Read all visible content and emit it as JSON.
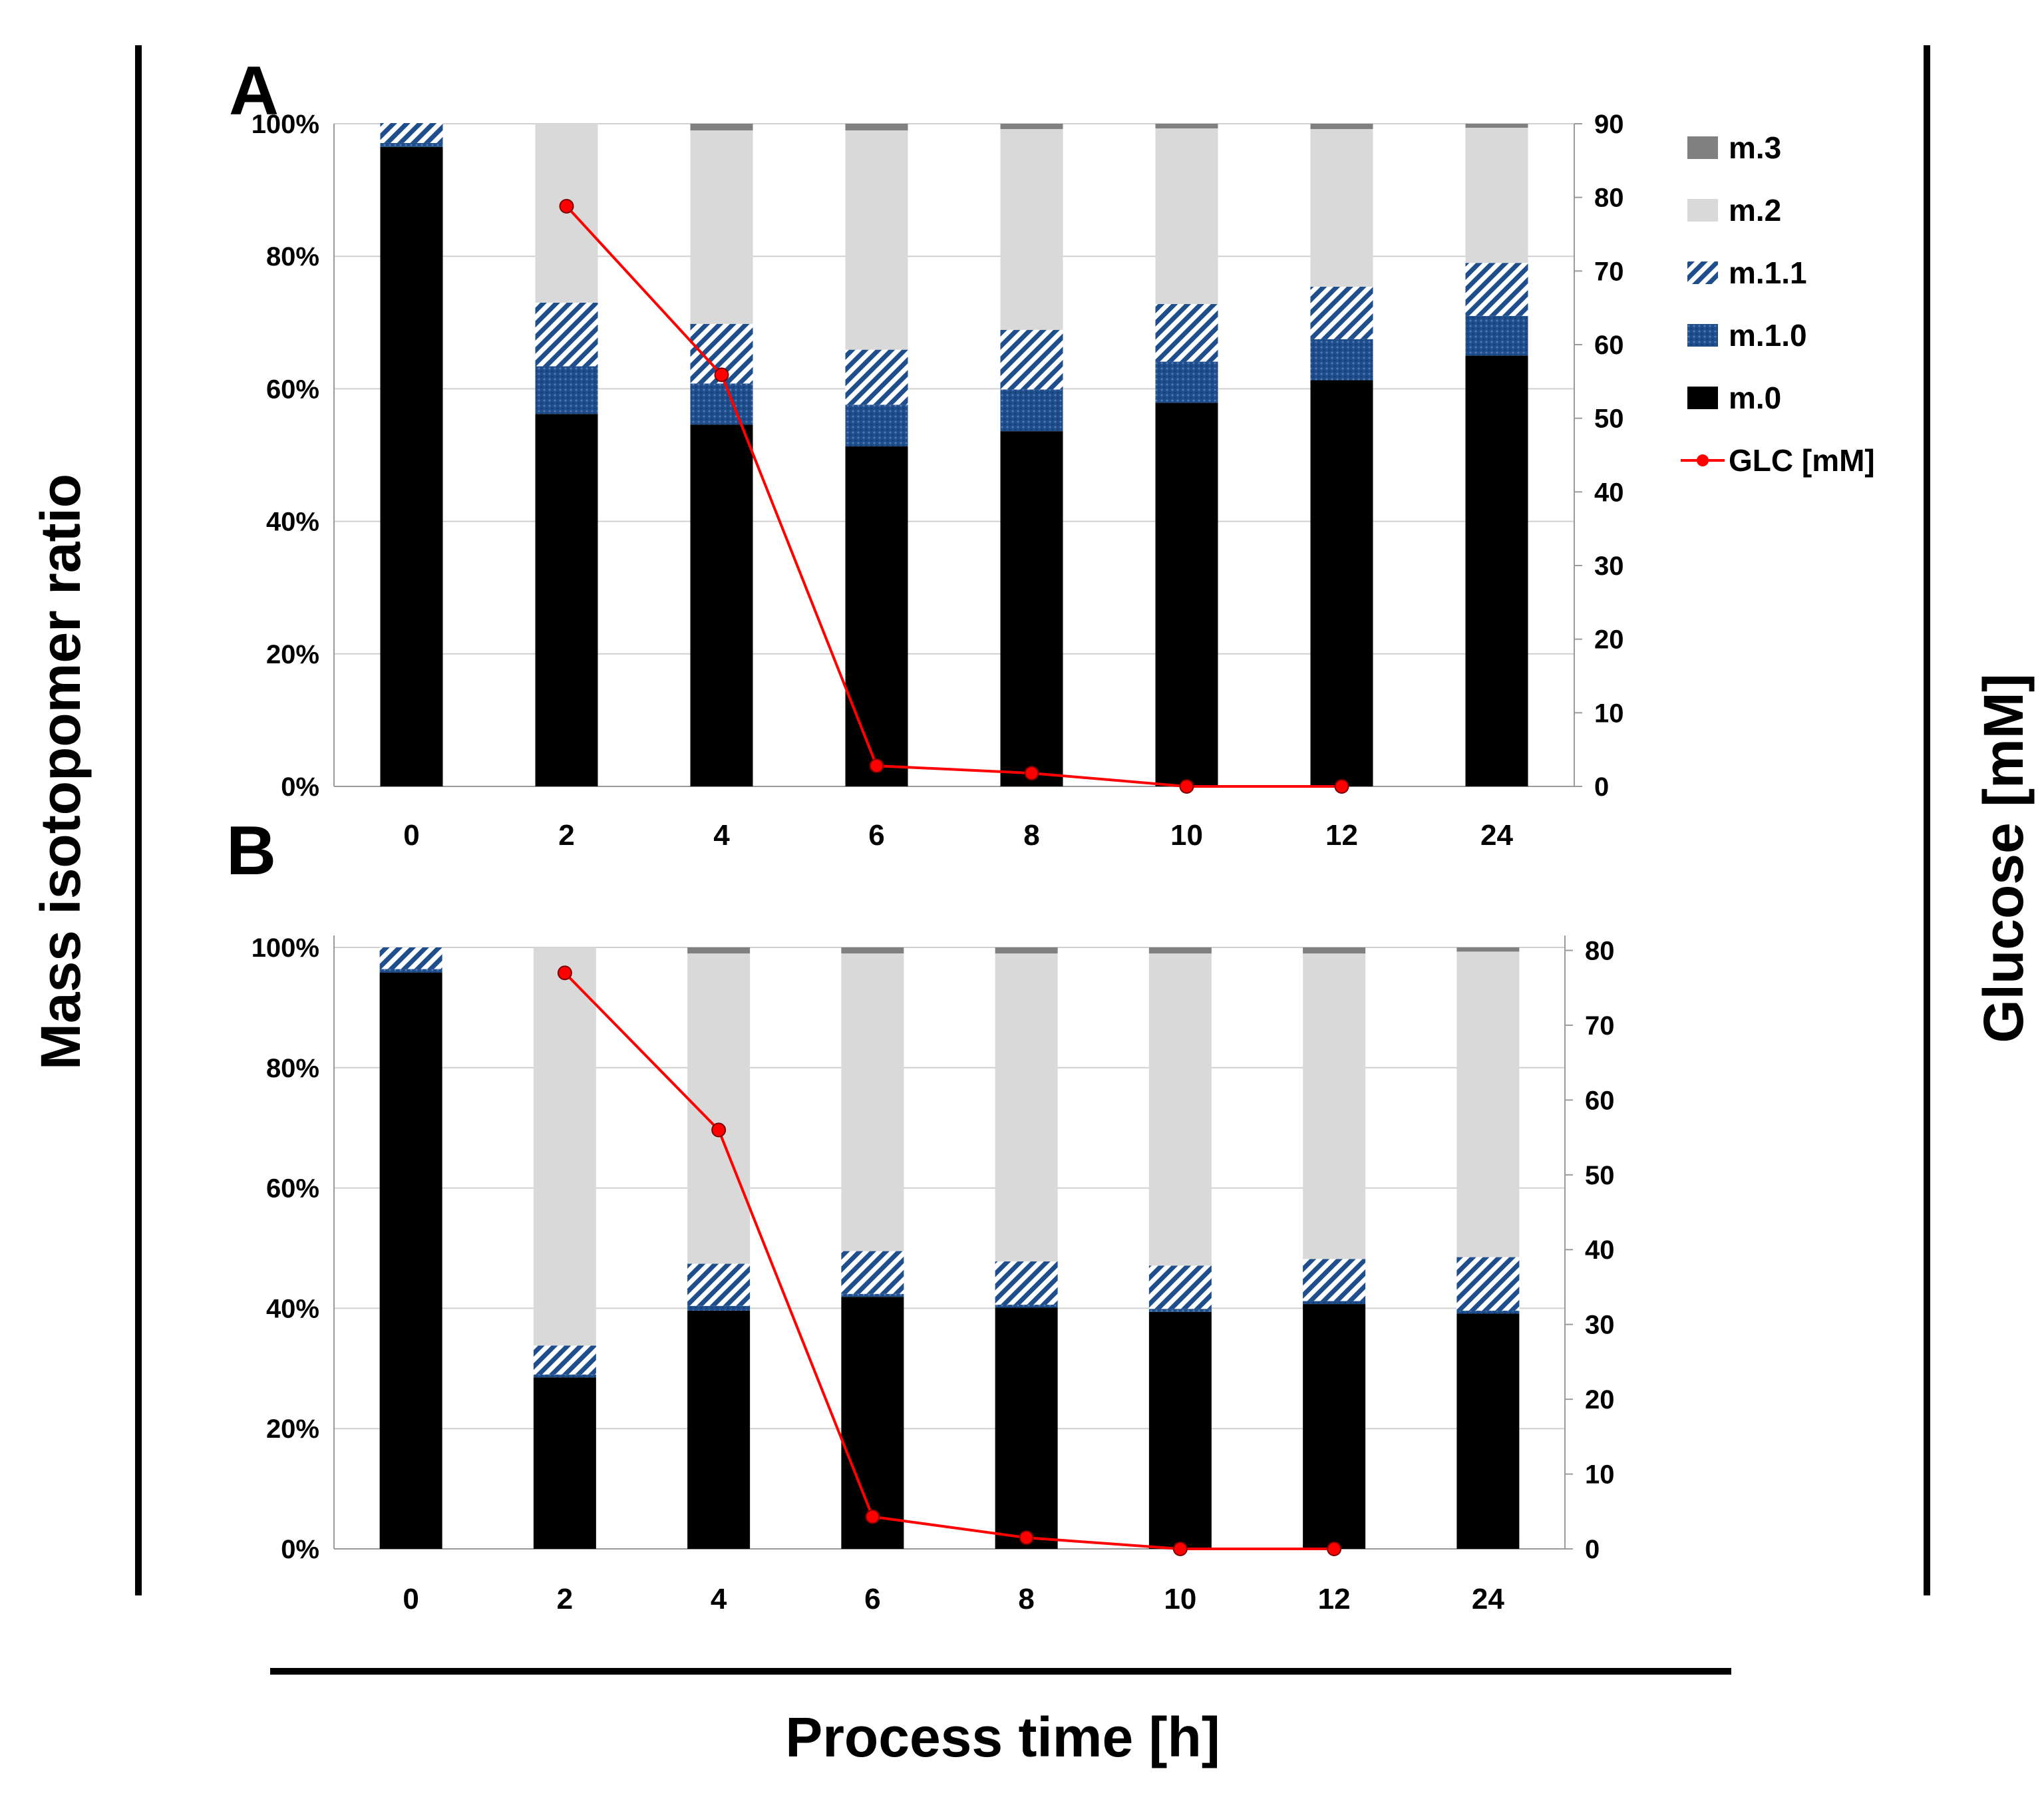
{
  "figure": {
    "y_title": "Mass isotopomer ratio",
    "y2_title": "Glucose [mM]",
    "x_title": "Process time [h]"
  },
  "legend": [
    {
      "key": "m3",
      "label": "m.3",
      "color": "#808080",
      "pattern": "solid"
    },
    {
      "key": "m2",
      "label": "m.2",
      "color": "#d9d9d9",
      "pattern": "solid"
    },
    {
      "key": "m11",
      "label": "m.1.1",
      "color": "#1f4e8c",
      "pattern": "hatch"
    },
    {
      "key": "m10",
      "label": "m.1.0",
      "color": "#1f4e8c",
      "pattern": "dots"
    },
    {
      "key": "m0",
      "label": "m.0",
      "color": "#000000",
      "pattern": "solid"
    },
    {
      "key": "glc",
      "label": "GLC [mM]",
      "color": "#ff0000",
      "pattern": "line"
    }
  ],
  "chart_data": [
    {
      "panel": "A",
      "type": "bar",
      "stacked": true,
      "categories": [
        "0",
        "2",
        "4",
        "6",
        "8",
        "10",
        "12",
        "24"
      ],
      "ylim": [
        0,
        100
      ],
      "yticks": [
        "0%",
        "20%",
        "40%",
        "60%",
        "80%",
        "100%"
      ],
      "y2lim": [
        0,
        90
      ],
      "y2ticks": [
        "0",
        "10",
        "20",
        "30",
        "40",
        "50",
        "60",
        "70",
        "80",
        "90"
      ],
      "series": [
        {
          "name": "m.0",
          "values": [
            96.5,
            56.2,
            54.6,
            51.3,
            53.6,
            57.9,
            61.3,
            65
          ]
        },
        {
          "name": "m.1.0",
          "values": [
            0.6,
            7.2,
            6.2,
            6.3,
            6.3,
            6.2,
            6.2,
            6
          ]
        },
        {
          "name": "m.1.1",
          "values": [
            3,
            9.6,
            9,
            8.3,
            9,
            8.7,
            7.9,
            8
          ]
        },
        {
          "name": "m.2",
          "values": [
            0,
            27,
            29.2,
            33.1,
            30.3,
            26.5,
            23.8,
            20.4
          ]
        },
        {
          "name": "m.3",
          "values": [
            0,
            0,
            1,
            1,
            0.8,
            0.7,
            0.8,
            0.6
          ]
        }
      ],
      "line": {
        "name": "GLC [mM]",
        "x": [
          "2",
          "4",
          "6",
          "8",
          "10",
          "12"
        ],
        "values": [
          78.8,
          55.9,
          2.8,
          1.8,
          0,
          0
        ]
      }
    },
    {
      "panel": "B",
      "type": "bar",
      "stacked": true,
      "categories": [
        "0",
        "2",
        "4",
        "6",
        "8",
        "10",
        "12",
        "24"
      ],
      "ylim": [
        0,
        100
      ],
      "yticks": [
        "0%",
        "20%",
        "40%",
        "60%",
        "80%",
        "100%"
      ],
      "y2lim": [
        0,
        82
      ],
      "y2ticks": [
        "0",
        "10",
        "20",
        "30",
        "40",
        "50",
        "60",
        "70",
        "80"
      ],
      "series": [
        {
          "name": "m.0",
          "values": [
            95.8,
            28.5,
            39.6,
            41.9,
            40.1,
            39.4,
            40.7,
            39.1
          ]
        },
        {
          "name": "m.1.0",
          "values": [
            0.6,
            0.5,
            0.8,
            0.5,
            0.5,
            0.5,
            0.5,
            0.5
          ]
        },
        {
          "name": "m.1.1",
          "values": [
            3.6,
            4.8,
            7,
            7.1,
            7.2,
            7.2,
            7,
            8.9
          ]
        },
        {
          "name": "m.2",
          "values": [
            0,
            66.2,
            51.6,
            49.5,
            51.2,
            51.9,
            50.8,
            50.8
          ]
        },
        {
          "name": "m.3",
          "values": [
            0,
            0,
            1,
            1,
            1,
            1,
            1,
            0.7
          ]
        }
      ],
      "line": {
        "name": "GLC [mM]",
        "x": [
          "2",
          "4",
          "6",
          "8",
          "10",
          "12"
        ],
        "values": [
          77,
          56,
          4.3,
          1.5,
          0,
          0
        ]
      }
    }
  ]
}
